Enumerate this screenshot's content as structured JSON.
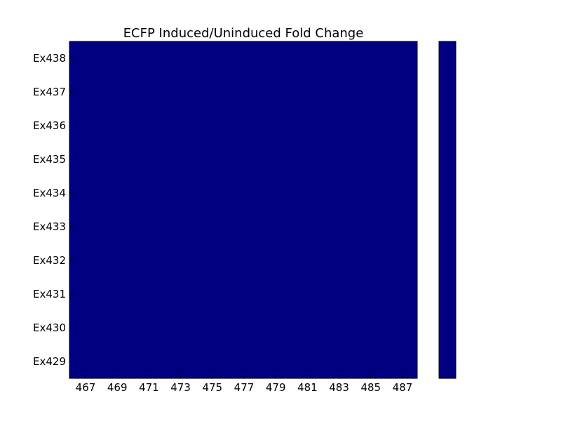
{
  "chart_data": {
    "type": "heatmap",
    "title": "ECFP Induced/Uninduced Fold Change",
    "xlabel": "",
    "ylabel": "",
    "x_tick_labels": [
      "467",
      "469",
      "471",
      "473",
      "475",
      "477",
      "479",
      "481",
      "483",
      "485",
      "487"
    ],
    "y_tick_labels": [
      "Ex438",
      "Ex437",
      "Ex436",
      "Ex435",
      "Ex434",
      "Ex433",
      "Ex432",
      "Ex431",
      "Ex430",
      "Ex429"
    ],
    "cell_color": "#000080",
    "colorbar": {
      "present": true,
      "color": "#000080",
      "tick_labels": []
    },
    "grid": false,
    "legend": "none"
  }
}
